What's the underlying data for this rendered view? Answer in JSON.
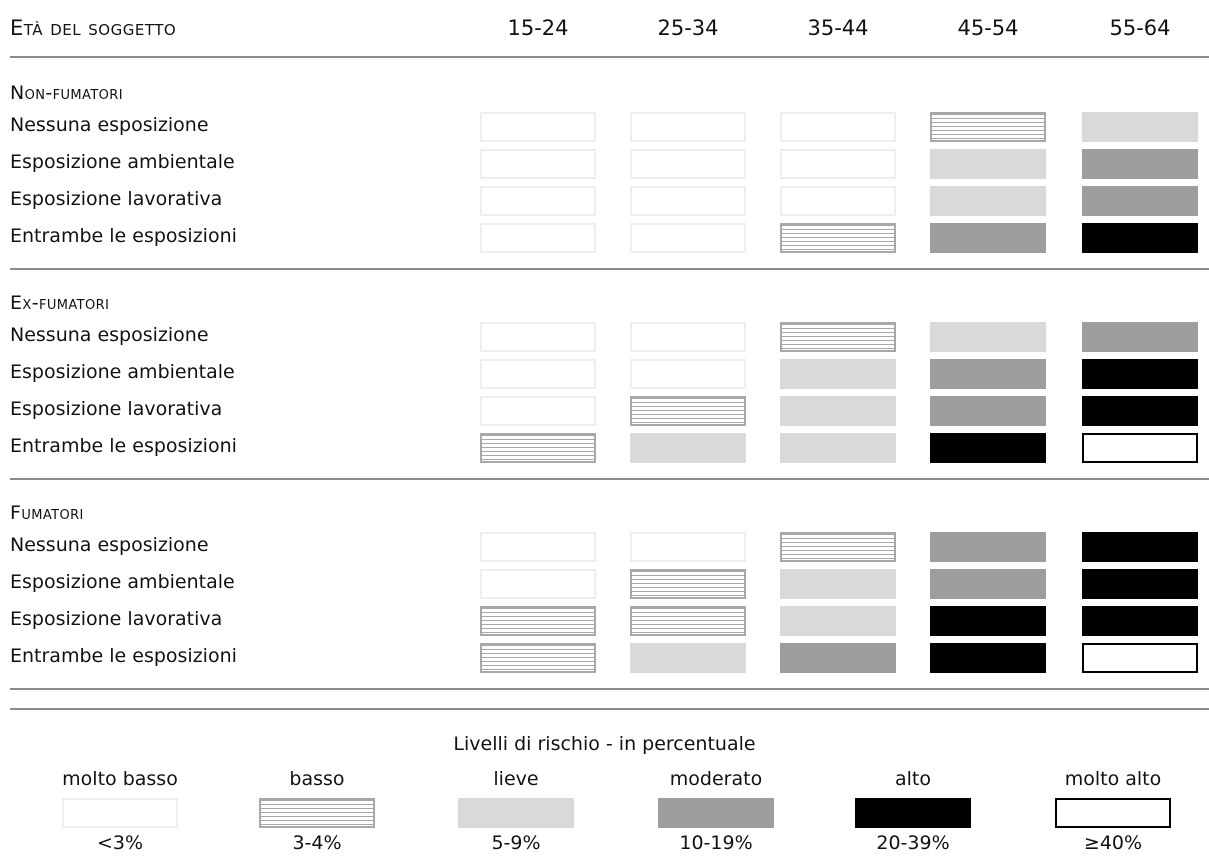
{
  "chart_data": {
    "type": "heatmap",
    "header_label": "Età del soggetto",
    "columns": [
      "15-24",
      "25-34",
      "35-44",
      "45-54",
      "55-64"
    ],
    "groups": [
      {
        "name": "Non-fumatori",
        "rows": [
          {
            "label": "Nessuna esposizione",
            "levels": [
              0,
              0,
              0,
              1,
              2
            ]
          },
          {
            "label": "Esposizione ambientale",
            "levels": [
              0,
              0,
              0,
              2,
              3
            ]
          },
          {
            "label": "Esposizione lavorativa",
            "levels": [
              0,
              0,
              0,
              2,
              3
            ]
          },
          {
            "label": "Entrambe le esposizioni",
            "levels": [
              0,
              0,
              1,
              3,
              4
            ]
          }
        ]
      },
      {
        "name": "Ex-fumatori",
        "rows": [
          {
            "label": "Nessuna esposizione",
            "levels": [
              0,
              0,
              1,
              2,
              3
            ]
          },
          {
            "label": "Esposizione ambientale",
            "levels": [
              0,
              0,
              2,
              3,
              4
            ]
          },
          {
            "label": "Esposizione lavorativa",
            "levels": [
              0,
              1,
              2,
              3,
              4
            ]
          },
          {
            "label": "Entrambe le esposizioni",
            "levels": [
              1,
              2,
              2,
              4,
              5
            ]
          }
        ]
      },
      {
        "name": "Fumatori",
        "rows": [
          {
            "label": "Nessuna esposizione",
            "levels": [
              0,
              0,
              1,
              3,
              4
            ]
          },
          {
            "label": "Esposizione ambientale",
            "levels": [
              0,
              1,
              2,
              3,
              4
            ]
          },
          {
            "label": "Esposizione lavorativa",
            "levels": [
              1,
              1,
              2,
              4,
              4
            ]
          },
          {
            "label": "Entrambe le esposizioni",
            "levels": [
              1,
              2,
              3,
              4,
              5
            ]
          }
        ]
      }
    ],
    "legend": {
      "title": "Livelli di rischio - in percentuale",
      "levels": [
        {
          "name": "molto basso",
          "range": "<3%",
          "style": "outline-light",
          "color": "#eeeeee"
        },
        {
          "name": "basso",
          "range": "3-4%",
          "style": "hatched",
          "color": "#a8a8a8"
        },
        {
          "name": "lieve",
          "range": "5-9%",
          "style": "fill",
          "color": "#d8d9da"
        },
        {
          "name": "moderato",
          "range": "10-19%",
          "style": "fill",
          "color": "#9c9d9e"
        },
        {
          "name": "alto",
          "range": "20-39%",
          "style": "fill",
          "color": "#000000"
        },
        {
          "name": "molto alto",
          "range": "≥40%",
          "style": "outline-dark",
          "color": "#000000"
        }
      ]
    }
  }
}
